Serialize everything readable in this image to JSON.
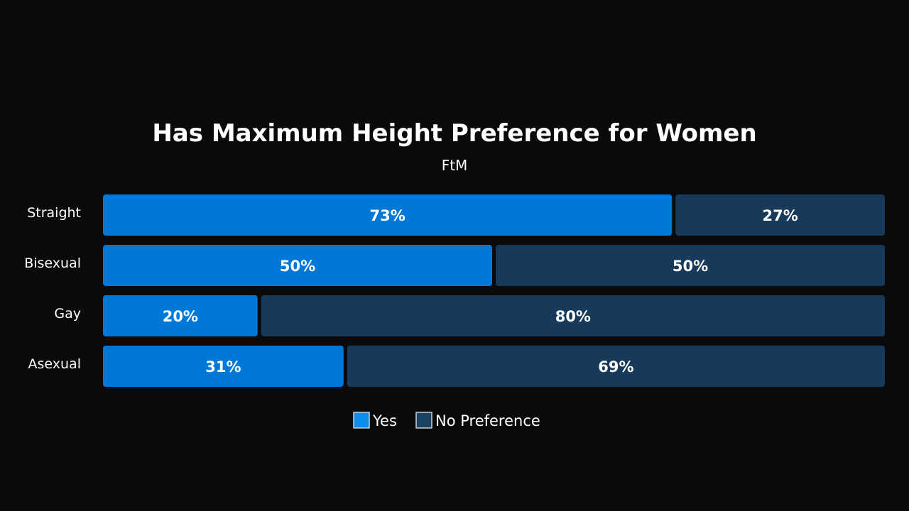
{
  "chart_data": {
    "type": "bar",
    "orientation": "horizontal",
    "stacked": true,
    "title": "Has Maximum Height Preference for Women",
    "subtitle": "FtM",
    "categories": [
      "Straight",
      "Bisexual",
      "Gay",
      "Asexual"
    ],
    "series": [
      {
        "name": "Yes",
        "color": "#0078d7",
        "values": [
          73,
          50,
          20,
          31
        ]
      },
      {
        "name": "No Preference",
        "color": "#173a5a",
        "values": [
          27,
          50,
          80,
          69
        ]
      }
    ],
    "value_suffix": "%",
    "xlim": [
      0,
      100
    ],
    "grid": false,
    "legend_position": "bottom-center"
  },
  "legend_colors": {
    "Yes": "#0a8ef0",
    "No Preference": "#1a4366"
  }
}
